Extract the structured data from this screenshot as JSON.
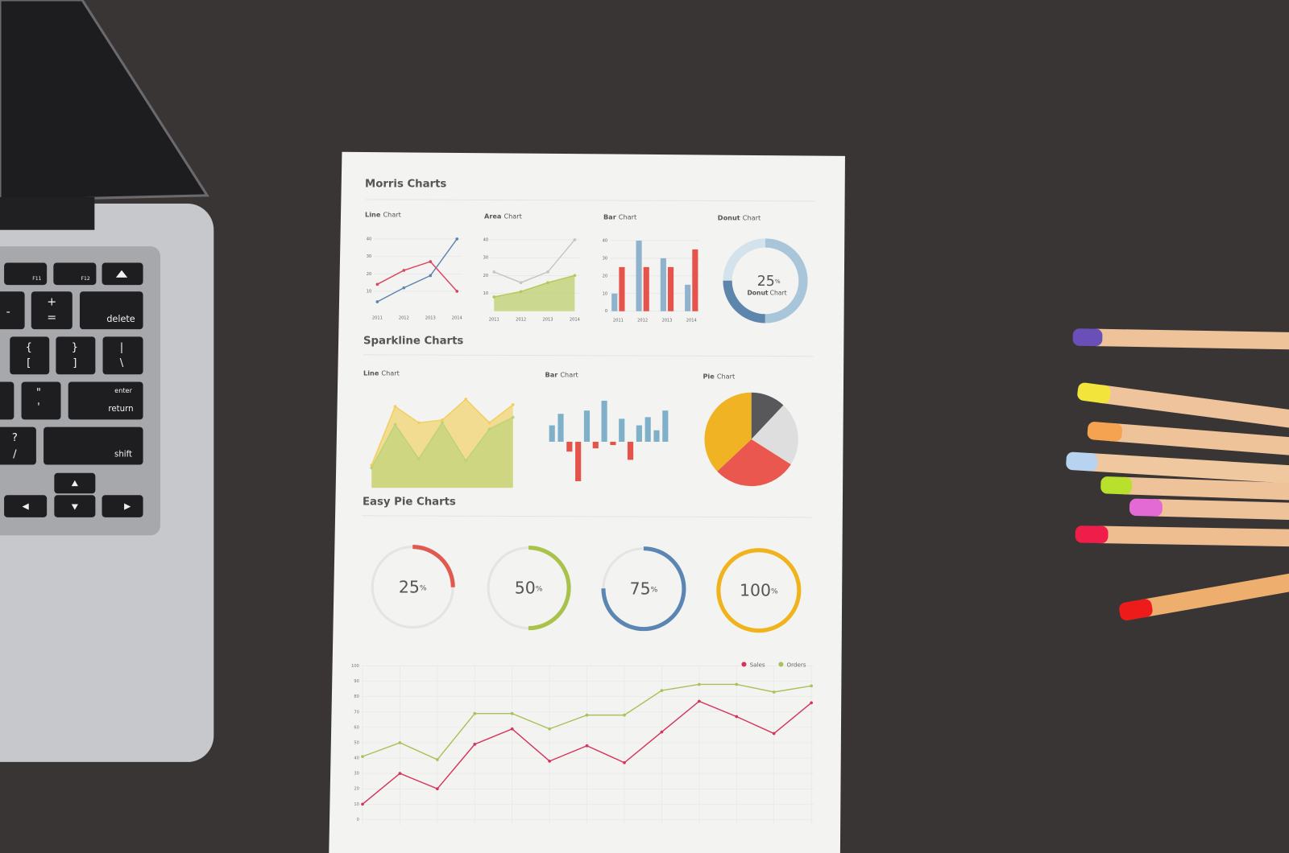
{
  "laptop": {
    "keys": [
      "F11",
      "F12",
      "-",
      "+",
      "=",
      "delete",
      "{",
      "[",
      "}",
      "]",
      "|",
      "\\",
      "\"",
      "'",
      "enter",
      "return",
      "?",
      "/",
      "shift"
    ]
  },
  "paper": {
    "morris": {
      "title": "Morris Charts",
      "line": {
        "title": [
          "Line",
          "Chart"
        ],
        "ylim": [
          0,
          40
        ],
        "yticks": [
          10,
          20,
          30,
          40
        ],
        "categories": [
          "2011",
          "2012",
          "2013",
          "2014"
        ],
        "series": [
          {
            "color": "#5b84b1",
            "values": [
              4,
              12,
              19,
              40
            ]
          },
          {
            "color": "#d8485f",
            "values": [
              14,
              22,
              27,
              10
            ]
          }
        ]
      },
      "area": {
        "title": [
          "Area",
          "Chart"
        ],
        "ylim": [
          0,
          40
        ],
        "yticks": [
          10,
          20,
          30,
          40
        ],
        "categories": [
          "2011",
          "2012",
          "2013",
          "2014"
        ],
        "series": [
          {
            "color": "#c4c4c4",
            "style": "line",
            "values": [
              22,
              16,
              22,
              40
            ]
          },
          {
            "color": "#b5c95a",
            "style": "area",
            "values": [
              8,
              11,
              16,
              20
            ]
          }
        ]
      },
      "bar": {
        "title": [
          "Bar",
          "Chart"
        ],
        "ylim": [
          0,
          40
        ],
        "yticks": [
          0,
          10,
          20,
          30,
          40
        ],
        "categories": [
          "2011",
          "2012",
          "2013",
          "2014"
        ],
        "series": [
          {
            "color": "#8fb3cc",
            "values": [
              10,
              40,
              30,
              15
            ]
          },
          {
            "color": "#e5534b",
            "values": [
              25,
              25,
              25,
              35
            ]
          }
        ]
      },
      "donut": {
        "title": [
          "Donut",
          "Chart"
        ],
        "value": 25,
        "unit": "%",
        "label": [
          "Donut",
          "Chart"
        ],
        "segments": [
          {
            "color": "#a9c5d9",
            "value": 50
          },
          {
            "color": "#5e86ad",
            "value": 25
          },
          {
            "color": "#d4e2ec",
            "value": 25
          }
        ]
      }
    },
    "sparkline": {
      "title": "Sparkline Charts",
      "line": {
        "title": [
          "Line",
          "Chart"
        ],
        "series": [
          {
            "color": "#f1cf5e",
            "values": [
              25,
              90,
              72,
              75,
              98,
              72,
              92
            ]
          },
          {
            "color": "#bcd27a",
            "values": [
              22,
              70,
              32,
              72,
              30,
              65,
              78
            ]
          }
        ]
      },
      "bar": {
        "title": [
          "Bar",
          "Chart"
        ],
        "colors": {
          "positive": "#7fb0c9",
          "negative": "#e5534b"
        },
        "values": [
          20,
          34,
          -12,
          -48,
          38,
          -8,
          50,
          -4,
          28,
          -22,
          20,
          30,
          14,
          38
        ]
      },
      "pie": {
        "title": [
          "Pie",
          "Chart"
        ],
        "values": [
          12,
          22,
          29,
          37
        ],
        "colors": [
          "#58585a",
          "#dedede",
          "#e9574f",
          "#f0b323"
        ]
      }
    },
    "easy_pie": {
      "title": "Easy Pie Charts",
      "unit": "%",
      "items": [
        {
          "value": 25,
          "color": "#e05a4f"
        },
        {
          "value": 50,
          "color": "#a9c24a"
        },
        {
          "value": 75,
          "color": "#5b86b3"
        },
        {
          "value": 100,
          "color": "#f1b31c"
        }
      ]
    },
    "trend": {
      "ylim": [
        0,
        100
      ],
      "yticks": [
        0,
        10,
        20,
        30,
        40,
        50,
        60,
        70,
        80,
        90,
        100
      ],
      "series": [
        {
          "name": "Sales",
          "color": "#d4345a",
          "values": [
            10,
            30,
            20,
            49,
            59,
            38,
            48,
            37,
            57,
            77,
            67,
            56,
            76
          ]
        },
        {
          "name": "Orders",
          "color": "#a8c25a",
          "values": [
            41,
            50,
            39,
            69,
            69,
            59,
            68,
            68,
            84,
            88,
            88,
            83,
            87
          ]
        }
      ]
    }
  }
}
